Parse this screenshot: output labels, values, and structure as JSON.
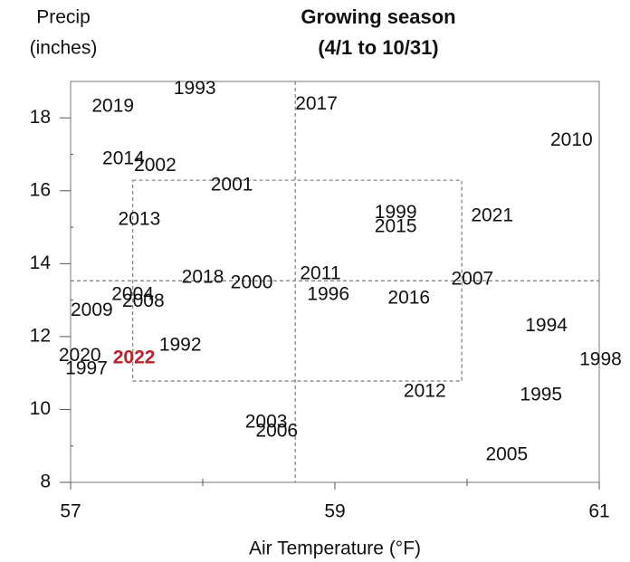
{
  "chart_data": {
    "type": "scatter",
    "title": [
      "Growing season",
      "(4/1 to 10/31)"
    ],
    "ylabel": [
      "Precip",
      "(inches)"
    ],
    "xlabel": "Air Temperature (°F)",
    "xlim": [
      57,
      61
    ],
    "ylim": [
      8,
      19
    ],
    "xticks": [
      57,
      59,
      61
    ],
    "yticks": [
      8,
      10,
      12,
      14,
      16,
      18
    ],
    "x_minor_ticks": [
      58,
      60
    ],
    "y_minor_ticks": [
      9,
      11,
      13,
      15,
      17
    ],
    "reference_lines": {
      "x": [
        58.7
      ],
      "y": [
        13.53
      ]
    },
    "reference_box": {
      "x": [
        57.47,
        59.96
      ],
      "y": [
        10.78,
        16.29
      ]
    },
    "labels": [
      "2019",
      "1993",
      "2017",
      "2010",
      "2014",
      "2002",
      "2001",
      "2013",
      "1999",
      "2015",
      "2021",
      "2018",
      "2000",
      "2011",
      "1996",
      "2007",
      "2016",
      "2004",
      "2008",
      "2009",
      "1994",
      "1992",
      "2020",
      "2022",
      "1997",
      "1998",
      "2012",
      "1995",
      "2003",
      "2006",
      "2005"
    ],
    "x": [
      57.32,
      57.94,
      58.86,
      60.79,
      57.4,
      57.64,
      58.22,
      57.52,
      59.46,
      59.46,
      60.19,
      58.0,
      58.37,
      58.89,
      58.95,
      60.04,
      59.56,
      57.47,
      57.55,
      57.16,
      60.6,
      57.83,
      57.07,
      57.48,
      57.12,
      61.01,
      59.68,
      60.56,
      58.48,
      58.56,
      60.3
    ],
    "values": [
      18.3,
      18.79,
      18.37,
      17.38,
      16.86,
      16.68,
      16.14,
      15.2,
      15.39,
      15.0,
      15.3,
      13.61,
      13.46,
      13.71,
      13.14,
      13.56,
      13.04,
      13.14,
      12.96,
      12.71,
      12.29,
      11.75,
      11.47,
      11.4,
      11.1,
      11.35,
      10.48,
      10.38,
      9.64,
      9.39,
      8.74
    ],
    "colors": [
      "#111",
      "#111",
      "#111",
      "#111",
      "#111",
      "#111",
      "#111",
      "#111",
      "#111",
      "#111",
      "#111",
      "#111",
      "#111",
      "#111",
      "#111",
      "#111",
      "#111",
      "#111",
      "#111",
      "#111",
      "#111",
      "#111",
      "#111",
      "#c0202a",
      "#111",
      "#111",
      "#111",
      "#111",
      "#111",
      "#111",
      "#111"
    ]
  }
}
